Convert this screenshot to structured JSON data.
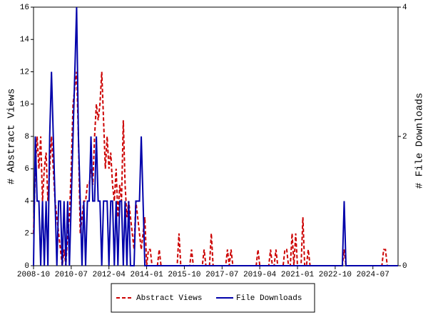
{
  "chart_data": {
    "type": "line",
    "y_label": "# Abstract Views",
    "y2_label": "# File Downloads",
    "x": [
      "2008-10",
      "2008-11",
      "2008-12",
      "2009-01",
      "2009-02",
      "2009-03",
      "2009-04",
      "2009-05",
      "2009-06",
      "2009-07",
      "2009-08",
      "2009-09",
      "2009-10",
      "2009-11",
      "2009-12",
      "2010-01",
      "2010-02",
      "2010-03",
      "2010-04",
      "2010-05",
      "2010-06",
      "2010-07",
      "2010-08",
      "2010-09",
      "2010-10",
      "2010-11",
      "2010-12",
      "2011-01",
      "2011-02",
      "2011-03",
      "2011-04",
      "2011-05",
      "2011-06",
      "2011-07",
      "2011-08",
      "2011-09",
      "2011-10",
      "2011-11",
      "2011-12",
      "2012-01",
      "2012-02",
      "2012-03",
      "2012-04",
      "2012-05",
      "2012-06",
      "2012-07",
      "2012-08",
      "2012-09",
      "2012-10",
      "2012-11",
      "2012-12",
      "2013-01",
      "2013-02",
      "2013-03",
      "2013-04",
      "2013-05",
      "2013-06",
      "2013-07",
      "2013-08",
      "2013-09",
      "2013-10",
      "2013-11",
      "2013-12",
      "2014-01",
      "2014-02",
      "2014-03",
      "2014-04",
      "2014-05",
      "2014-06",
      "2014-07",
      "2014-08",
      "2014-09",
      "2014-10",
      "2014-11",
      "2014-12",
      "2015-01",
      "2015-02",
      "2015-03",
      "2015-04",
      "2015-05",
      "2015-06",
      "2015-07",
      "2015-08",
      "2015-09",
      "2015-10",
      "2015-11",
      "2015-12",
      "2016-01",
      "2016-02",
      "2016-03",
      "2016-04",
      "2016-05",
      "2016-06",
      "2016-07",
      "2016-08",
      "2016-09",
      "2016-10",
      "2016-11",
      "2016-12",
      "2017-01",
      "2017-02",
      "2017-03",
      "2017-04",
      "2017-05",
      "2017-06",
      "2017-07",
      "2017-08",
      "2017-09",
      "2017-10",
      "2017-11",
      "2017-12",
      "2018-01",
      "2018-02",
      "2018-03",
      "2018-04",
      "2018-05",
      "2018-06",
      "2018-07",
      "2018-08",
      "2018-09",
      "2018-10",
      "2018-11",
      "2018-12",
      "2019-01",
      "2019-02",
      "2019-03",
      "2019-04",
      "2019-05",
      "2019-06",
      "2019-07",
      "2019-08",
      "2019-09",
      "2019-10",
      "2019-11",
      "2019-12",
      "2020-01",
      "2020-02",
      "2020-03",
      "2020-04",
      "2020-05",
      "2020-06",
      "2020-07",
      "2020-08",
      "2020-09",
      "2020-10",
      "2020-11",
      "2020-12",
      "2021-01",
      "2021-02",
      "2021-03",
      "2021-04",
      "2021-05",
      "2021-06",
      "2021-07",
      "2021-08",
      "2021-09",
      "2021-10",
      "2021-11",
      "2021-12",
      "2022-01",
      "2022-02",
      "2022-03",
      "2022-04",
      "2022-05",
      "2022-06",
      "2022-07",
      "2022-08",
      "2022-09",
      "2022-10",
      "2022-11",
      "2022-12",
      "2023-01",
      "2023-02",
      "2023-03",
      "2023-04",
      "2023-05",
      "2023-06",
      "2023-07",
      "2023-08",
      "2023-09",
      "2023-10",
      "2023-11",
      "2023-12",
      "2024-01",
      "2024-02",
      "2024-03",
      "2024-04",
      "2024-05",
      "2024-06",
      "2024-07",
      "2024-08",
      "2024-09",
      "2024-10",
      "2024-11",
      "2024-12",
      "2025-01",
      "2025-02",
      "2025-03",
      "2025-04",
      "2025-05",
      "2025-06",
      "2025-07",
      "2025-08",
      "2025-09"
    ],
    "xticks": [
      "2008-10",
      "2010-07",
      "2012-04",
      "2014-01",
      "2015-10",
      "2017-07",
      "2019-04",
      "2021-01",
      "2022-10",
      "2024-07"
    ],
    "ylim": [
      0,
      16
    ],
    "yticks": [
      0,
      2,
      4,
      6,
      8,
      10,
      12,
      14,
      16
    ],
    "y2lim": [
      0,
      4
    ],
    "y2ticks": [
      0,
      2,
      4
    ],
    "legend": "bottom",
    "series": [
      {
        "name": "Abstract Views",
        "color": "#cc0000",
        "dash": true,
        "values": [
          2,
          6,
          8,
          6,
          8,
          4,
          6,
          7,
          4,
          6,
          8,
          6,
          4,
          3,
          2,
          1,
          0,
          1,
          0,
          2,
          3,
          6,
          10,
          11,
          12,
          8,
          2,
          3,
          4,
          4,
          5,
          5,
          6,
          5,
          8,
          10,
          9,
          10,
          12,
          9,
          6,
          8,
          6,
          7,
          5,
          4,
          6,
          3,
          5,
          4,
          9,
          5,
          3,
          4,
          3,
          2,
          1,
          4,
          3,
          2,
          1,
          2,
          3,
          0,
          1,
          1,
          0,
          0,
          0,
          0,
          1,
          0,
          0,
          0,
          0,
          0,
          0,
          0,
          0,
          0,
          0,
          2,
          0,
          0,
          0,
          0,
          0,
          0,
          1,
          0,
          0,
          0,
          0,
          0,
          0,
          1,
          0,
          0,
          0,
          2,
          0,
          0,
          0,
          0,
          0,
          0,
          0,
          0,
          1,
          0,
          1,
          0,
          0,
          0,
          0,
          0,
          0,
          0,
          0,
          0,
          0,
          0,
          0,
          0,
          0,
          1,
          0,
          0,
          0,
          0,
          0,
          0,
          1,
          0,
          0,
          1,
          0,
          0,
          0,
          0,
          1,
          1,
          0,
          0,
          2,
          0,
          2,
          0,
          0,
          0,
          3,
          0,
          0,
          1,
          0,
          0,
          0,
          0,
          0,
          0,
          0,
          0,
          0,
          0,
          0,
          0,
          0,
          0,
          0,
          0,
          0,
          0,
          0,
          1,
          0,
          0,
          0,
          0,
          0,
          0,
          0,
          0,
          0,
          0,
          0,
          0,
          0,
          0,
          0,
          0,
          0,
          0,
          0,
          0,
          0,
          1,
          1,
          0,
          0,
          0,
          0,
          0,
          0,
          0
        ]
      },
      {
        "name": "File Downloads",
        "color": "#0000aa",
        "dash": false,
        "axis": "y2",
        "values": [
          0,
          2,
          1,
          1,
          0,
          1,
          0,
          1,
          0,
          2,
          3,
          2,
          1,
          0,
          1,
          1,
          0,
          1,
          0,
          1,
          0,
          1,
          2,
          3,
          4,
          2,
          1,
          0,
          1,
          0,
          1,
          1,
          2,
          1,
          1,
          2,
          1,
          1,
          0,
          1,
          1,
          1,
          0,
          1,
          1,
          0,
          1,
          0,
          1,
          1,
          0,
          1,
          0,
          1,
          0,
          0,
          0,
          1,
          1,
          1,
          2,
          1,
          0,
          0,
          0,
          0,
          0,
          0,
          0,
          0,
          0,
          0,
          0,
          0,
          0,
          0,
          0,
          0,
          0,
          0,
          0,
          0,
          0,
          0,
          0,
          0,
          0,
          0,
          0,
          0,
          0,
          0,
          0,
          0,
          0,
          0,
          0,
          0,
          0,
          0,
          0,
          0,
          0,
          0,
          0,
          0,
          0,
          0,
          0,
          0,
          0,
          0,
          0,
          0,
          0,
          0,
          0,
          0,
          0,
          0,
          0,
          0,
          0,
          0,
          0,
          0,
          0,
          0,
          0,
          0,
          0,
          0,
          0,
          0,
          0,
          0,
          0,
          0,
          0,
          0,
          0,
          0,
          0,
          0,
          0,
          0,
          0,
          0,
          0,
          0,
          0,
          0,
          0,
          0,
          0,
          0,
          0,
          0,
          0,
          0,
          0,
          0,
          0,
          0,
          0,
          0,
          0,
          0,
          0,
          0,
          0,
          0,
          0,
          1,
          0,
          0,
          0,
          0,
          0,
          0,
          0,
          0,
          0,
          0,
          0,
          0,
          0,
          0,
          0,
          0,
          0,
          0,
          0,
          0,
          0,
          0,
          0,
          0,
          0,
          0,
          0,
          0,
          0,
          0
        ]
      }
    ]
  }
}
